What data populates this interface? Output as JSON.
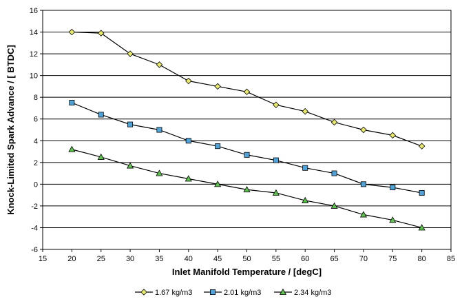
{
  "chart_data": {
    "type": "line",
    "title": "",
    "xlabel": "Inlet Manifold Temperature  / [degC]",
    "ylabel": "Knock-Limited Spark Advance / [ BTDC]",
    "xlim": [
      15,
      85
    ],
    "ylim": [
      -6,
      16
    ],
    "xticks": [
      15,
      20,
      25,
      30,
      35,
      40,
      45,
      50,
      55,
      60,
      65,
      70,
      75,
      80,
      85
    ],
    "yticks": [
      -6,
      -4,
      -2,
      0,
      2,
      4,
      6,
      8,
      10,
      12,
      14,
      16
    ],
    "grid": "horizontal",
    "legend_position": "bottom",
    "series": [
      {
        "name": "1.67 kg/m3",
        "marker": "diamond",
        "marker_color": "#e8e86a",
        "line_color": "#000000",
        "x": [
          20,
          25,
          30,
          35,
          40,
          45,
          50,
          55,
          60,
          65,
          70,
          75,
          80
        ],
        "y": [
          14.0,
          13.9,
          12.0,
          11.0,
          9.5,
          9.0,
          8.5,
          7.3,
          6.7,
          5.7,
          5.0,
          4.5,
          3.5
        ]
      },
      {
        "name": "2.01 kg/m3",
        "marker": "square",
        "marker_color": "#4fa3d9",
        "line_color": "#000000",
        "x": [
          20,
          25,
          30,
          35,
          40,
          45,
          50,
          55,
          60,
          65,
          70,
          75,
          80
        ],
        "y": [
          7.5,
          6.4,
          5.5,
          5.0,
          4.0,
          3.5,
          2.7,
          2.2,
          1.5,
          1.0,
          0.0,
          -0.3,
          -0.8
        ]
      },
      {
        "name": "2.34 kg/m3",
        "marker": "triangle",
        "marker_color": "#5ec24e",
        "line_color": "#000000",
        "x": [
          20,
          25,
          30,
          35,
          40,
          45,
          50,
          55,
          60,
          65,
          70,
          75,
          80
        ],
        "y": [
          3.2,
          2.5,
          1.7,
          1.0,
          0.5,
          0.0,
          -0.5,
          -0.8,
          -1.5,
          -2.0,
          -2.8,
          -3.3,
          -4.0
        ]
      }
    ]
  }
}
